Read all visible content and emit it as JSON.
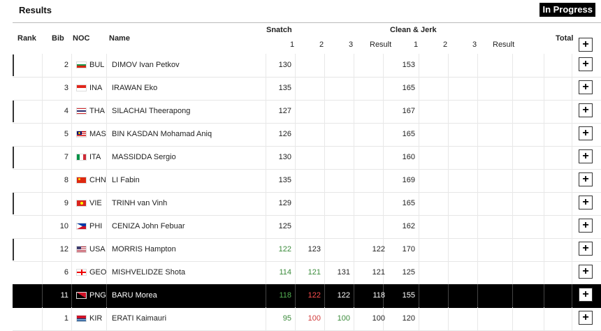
{
  "header": {
    "title": "Results",
    "status": "In Progress"
  },
  "columns": {
    "rank": "Rank",
    "bib": "Bib",
    "noc": "NOC",
    "name": "Name",
    "snatch": "Snatch",
    "clean_jerk": "Clean & Jerk",
    "total": "Total",
    "att1": "1",
    "att2": "2",
    "att3": "3",
    "result": "Result"
  },
  "expand_label": "+",
  "rows": [
    {
      "bib": "2",
      "noc": "BUL",
      "flag": "bulgaria-flag-icon",
      "name": "DIMOV Ivan Petkov",
      "s1": "130",
      "s1s": "",
      "s2": "",
      "s2s": "",
      "s3": "",
      "s3s": "",
      "sr": "",
      "c1": "153",
      "c2": "",
      "c3": "",
      "cr": "",
      "total": "",
      "marker": true
    },
    {
      "bib": "3",
      "noc": "INA",
      "flag": "indonesia-flag-icon",
      "name": "IRAWAN Eko",
      "s1": "135",
      "s1s": "",
      "s2": "",
      "s2s": "",
      "s3": "",
      "s3s": "",
      "sr": "",
      "c1": "165",
      "c2": "",
      "c3": "",
      "cr": "",
      "total": "",
      "marker": false
    },
    {
      "bib": "4",
      "noc": "THA",
      "flag": "thailand-flag-icon",
      "name": "SILACHAI Theerapong",
      "s1": "127",
      "s1s": "",
      "s2": "",
      "s2s": "",
      "s3": "",
      "s3s": "",
      "sr": "",
      "c1": "167",
      "c2": "",
      "c3": "",
      "cr": "",
      "total": "",
      "marker": true
    },
    {
      "bib": "5",
      "noc": "MAS",
      "flag": "malaysia-flag-icon",
      "name": "BIN KASDAN Mohamad Aniq",
      "s1": "126",
      "s1s": "",
      "s2": "",
      "s2s": "",
      "s3": "",
      "s3s": "",
      "sr": "",
      "c1": "165",
      "c2": "",
      "c3": "",
      "cr": "",
      "total": "",
      "marker": false
    },
    {
      "bib": "7",
      "noc": "ITA",
      "flag": "italy-flag-icon",
      "name": "MASSIDDA Sergio",
      "s1": "130",
      "s1s": "",
      "s2": "",
      "s2s": "",
      "s3": "",
      "s3s": "",
      "sr": "",
      "c1": "160",
      "c2": "",
      "c3": "",
      "cr": "",
      "total": "",
      "marker": true
    },
    {
      "bib": "8",
      "noc": "CHN",
      "flag": "china-flag-icon",
      "name": "LI Fabin",
      "s1": "135",
      "s1s": "",
      "s2": "",
      "s2s": "",
      "s3": "",
      "s3s": "",
      "sr": "",
      "c1": "169",
      "c2": "",
      "c3": "",
      "cr": "",
      "total": "",
      "marker": false
    },
    {
      "bib": "9",
      "noc": "VIE",
      "flag": "vietnam-flag-icon",
      "name": "TRINH van Vinh",
      "s1": "129",
      "s1s": "",
      "s2": "",
      "s2s": "",
      "s3": "",
      "s3s": "",
      "sr": "",
      "c1": "165",
      "c2": "",
      "c3": "",
      "cr": "",
      "total": "",
      "marker": true
    },
    {
      "bib": "10",
      "noc": "PHI",
      "flag": "philippines-flag-icon",
      "name": "CENIZA John Febuar",
      "s1": "125",
      "s1s": "",
      "s2": "",
      "s2s": "",
      "s3": "",
      "s3s": "",
      "sr": "",
      "c1": "162",
      "c2": "",
      "c3": "",
      "cr": "",
      "total": "",
      "marker": false
    },
    {
      "bib": "12",
      "noc": "USA",
      "flag": "usa-flag-icon",
      "name": "MORRIS Hampton",
      "s1": "122",
      "s1s": "good",
      "s2": "123",
      "s2s": "",
      "s3": "",
      "s3s": "",
      "sr": "122",
      "c1": "170",
      "c2": "",
      "c3": "",
      "cr": "",
      "total": "",
      "marker": true
    },
    {
      "bib": "6",
      "noc": "GEO",
      "flag": "georgia-flag-icon",
      "name": "MISHVELIDZE Shota",
      "s1": "114",
      "s1s": "good",
      "s2": "121",
      "s2s": "good",
      "s3": "131",
      "s3s": "",
      "sr": "121",
      "c1": "125",
      "c2": "",
      "c3": "",
      "cr": "",
      "total": "",
      "marker": false
    },
    {
      "bib": "11",
      "noc": "PNG",
      "flag": "png-flag-icon",
      "name": "BARU Morea",
      "s1": "118",
      "s1s": "good",
      "s2": "122",
      "s2s": "bad",
      "s3": "122",
      "s3s": "",
      "sr": "118",
      "c1": "155",
      "c2": "",
      "c3": "",
      "cr": "",
      "total": "",
      "marker": false,
      "active": true
    },
    {
      "bib": "1",
      "noc": "KIR",
      "flag": "kiribati-flag-icon",
      "name": "ERATI Kaimauri",
      "s1": "95",
      "s1s": "good",
      "s2": "100",
      "s2s": "bad",
      "s3": "100",
      "s3s": "good",
      "sr": "100",
      "c1": "120",
      "c2": "",
      "c3": "",
      "cr": "",
      "total": "",
      "marker": false
    }
  ]
}
